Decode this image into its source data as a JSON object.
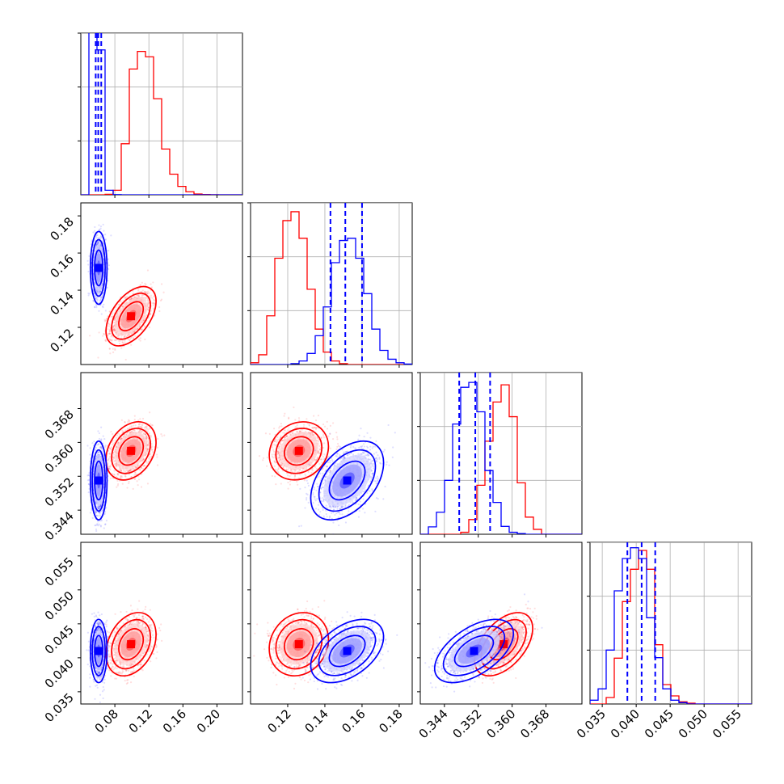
{
  "chart_data": {
    "type": "corner",
    "colors": {
      "blue": "#0000ff",
      "red": "#ff0000",
      "grid": "#b0b0b0"
    },
    "params": [
      {
        "lim": [
          0.04,
          0.23
        ],
        "ticks": [
          0.08,
          0.12,
          0.16,
          0.2
        ],
        "tick_labels": [
          "0.08",
          "0.12",
          "0.16",
          "0.20"
        ]
      },
      {
        "lim": [
          0.1,
          0.187
        ],
        "ticks": [
          0.12,
          0.14,
          0.16,
          0.18
        ],
        "tick_labels": [
          "0.12",
          "0.14",
          "0.16",
          "0.18"
        ]
      },
      {
        "lim": [
          0.3383,
          0.3765
        ],
        "ticks": [
          0.344,
          0.352,
          0.36,
          0.368
        ],
        "tick_labels": [
          "0.344",
          "0.352",
          "0.360",
          "0.368"
        ]
      },
      {
        "lim": [
          0.0332,
          0.057
        ],
        "ticks": [
          0.035,
          0.04,
          0.045,
          0.05,
          0.055
        ],
        "tick_labels": [
          "0.035",
          "0.040",
          "0.045",
          "0.050",
          "0.055"
        ]
      }
    ],
    "series": [
      {
        "color": "blue",
        "mean": [
          0.061,
          0.152,
          0.351,
          0.041
        ],
        "std": [
          0.004,
          0.008,
          0.0038,
          0.0019
        ],
        "rho": [
          [
            1,
            0,
            0,
            0
          ],
          [
            0,
            1,
            0.45,
            0.45
          ],
          [
            0,
            0.45,
            1,
            0.55
          ],
          [
            0,
            0.45,
            0.55,
            1
          ]
        ]
      },
      {
        "color": "red",
        "mean": [
          0.099,
          0.126,
          0.358,
          0.042
        ],
        "std": [
          0.012,
          0.0065,
          0.0028,
          0.0019
        ],
        "rho": [
          [
            1,
            0.5,
            0.3,
            0.3
          ],
          [
            0.5,
            1,
            0.15,
            0.15
          ],
          [
            0.3,
            0.15,
            1,
            0.5
          ],
          [
            0.3,
            0.15,
            0.5,
            1
          ]
        ]
      }
    ],
    "quantiles": [
      [
        0.0575,
        0.0605,
        0.064
      ],
      [
        0.143,
        0.151,
        0.16
      ],
      [
        0.3475,
        0.3513,
        0.3548
      ],
      [
        0.0387,
        0.0408,
        0.0428
      ]
    ],
    "histograms": [
      {
        "edges": [
          0.04,
          0.0495,
          0.059,
          0.0685,
          0.078,
          0.0875,
          0.097,
          0.1065,
          0.116,
          0.1255,
          0.135,
          0.1445,
          0.154,
          0.1635,
          0.173,
          0.1825,
          0.192,
          0.2015,
          0.211,
          0.2205,
          0.23
        ],
        "ylim": [
          0,
          10600
        ],
        "blue": [
          0,
          10800,
          9500,
          300,
          15,
          0,
          0,
          0,
          0,
          0,
          0,
          0,
          0,
          0,
          0,
          0,
          0,
          0,
          0,
          0
        ],
        "red": [
          0,
          0,
          0,
          30,
          300,
          3350,
          8250,
          9400,
          9050,
          6300,
          3000,
          1350,
          550,
          200,
          50,
          20,
          5,
          0,
          0,
          0
        ]
      },
      {
        "edges": [
          0.1,
          0.10435,
          0.1087,
          0.11305,
          0.1174,
          0.12175,
          0.1261,
          0.13045,
          0.1348,
          0.13915,
          0.1435,
          0.14785,
          0.1522,
          0.15655,
          0.1609,
          0.16525,
          0.1696,
          0.17395,
          0.1783,
          0.18265,
          0.187
        ],
        "ylim": [
          0,
          3650
        ],
        "blue": [
          0,
          0,
          0,
          0,
          0,
          20,
          80,
          250,
          650,
          1300,
          2300,
          2800,
          2850,
          2400,
          1600,
          800,
          320,
          120,
          40,
          10
        ],
        "red": [
          40,
          220,
          1100,
          2400,
          3250,
          3450,
          2850,
          1700,
          800,
          280,
          80,
          20,
          0,
          0,
          0,
          0,
          0,
          0,
          0,
          0
        ]
      },
      {
        "edges": [
          0.3383,
          0.34021,
          0.34212,
          0.34403,
          0.34594,
          0.34785,
          0.34976,
          0.35167,
          0.35358,
          0.35549,
          0.3574,
          0.35931,
          0.36122,
          0.36313,
          0.36504,
          0.36695,
          0.36886,
          0.37077,
          0.37268,
          0.37459,
          0.3765
        ],
        "ylim": [
          0,
          3300
        ],
        "blue": [
          0,
          150,
          450,
          1100,
          2250,
          3000,
          3100,
          2500,
          1300,
          650,
          160,
          40,
          15,
          0,
          0,
          0,
          0,
          0,
          0,
          0
        ],
        "red": [
          0,
          0,
          0,
          0,
          0,
          40,
          300,
          1000,
          1900,
          2700,
          3050,
          2400,
          1050,
          350,
          100,
          0,
          0,
          0,
          0,
          0
        ]
      },
      {
        "edges": [
          0.0332,
          0.03439,
          0.03558,
          0.03677,
          0.03796,
          0.03915,
          0.04034,
          0.04153,
          0.04272,
          0.04391,
          0.0451,
          0.04629,
          0.04748,
          0.04867,
          0.04986,
          0.05105,
          0.05224,
          0.05343,
          0.05462,
          0.05581,
          0.057
        ],
        "ylim": [
          0,
          3000
        ],
        "blue": [
          70,
          280,
          1000,
          2100,
          2700,
          2900,
          2700,
          1600,
          860,
          280,
          70,
          25,
          0,
          0,
          0,
          0,
          0,
          0,
          0,
          0
        ],
        "red": [
          0,
          0,
          120,
          850,
          1900,
          2500,
          2850,
          2500,
          1100,
          360,
          150,
          40,
          15,
          0,
          0,
          0,
          0,
          0,
          0,
          0
        ]
      }
    ]
  }
}
